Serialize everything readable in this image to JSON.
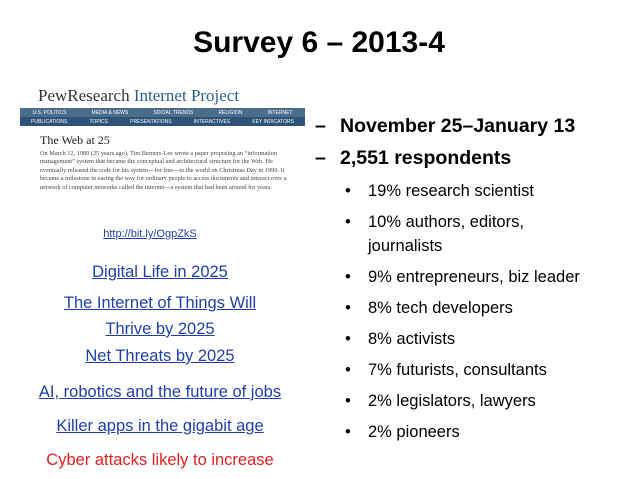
{
  "title": "Survey 6 – 2013-4",
  "screenshot": {
    "logo_main": "PewResearch",
    "logo_sub": "Internet Project",
    "nav": [
      "U.S. POLITICS",
      "MEDIA & NEWS",
      "SOCIAL TRENDS",
      "RELIGION",
      "INTERNET"
    ],
    "subnav": [
      "PUBLICATIONS",
      "TOPICS",
      "PRESENTATIONS",
      "INTERACTIVES",
      "KEY INDICATORS"
    ],
    "heading": "The Web at 25",
    "paragraph": "On March 12, 1989 (25 years ago), Tim Berners-Lee wrote a paper proposing an “information management” system that became the conceptual and architectural structure for the Web. He eventually released the code for his system—for free—to the world on Christmas Day in 1990. It became a milestone in easing the way for ordinary people to access documents and interact over a network of computer networks called the internet—a system that had been around for years."
  },
  "url": "http://bit.ly/OgpZkS",
  "links": [
    {
      "lines": [
        "Digital Life in 2025"
      ]
    },
    {
      "lines": [
        "The Internet of Things Will",
        "Thrive by 2025"
      ]
    },
    {
      "lines": [
        "Net Threats by 2025"
      ]
    },
    {
      "lines": [
        "AI, robotics and the future of jobs"
      ]
    },
    {
      "lines": [
        "Killer apps in the gigabit age"
      ]
    },
    {
      "lines": [
        "Cyber attacks likely to increase"
      ]
    }
  ],
  "dashes": [
    "November 25–January 13",
    "2,551 respondents"
  ],
  "bullets": [
    [
      "19% research scientist"
    ],
    [
      "10% authors, editors,",
      "journalists"
    ],
    [
      "9% entrepreneurs, biz leader"
    ],
    [
      "8% tech developers"
    ],
    [
      "8% activists"
    ],
    [
      "7% futurists, consultants"
    ],
    [
      "2% legislators, lawyers"
    ],
    [
      "2% pioneers"
    ]
  ]
}
